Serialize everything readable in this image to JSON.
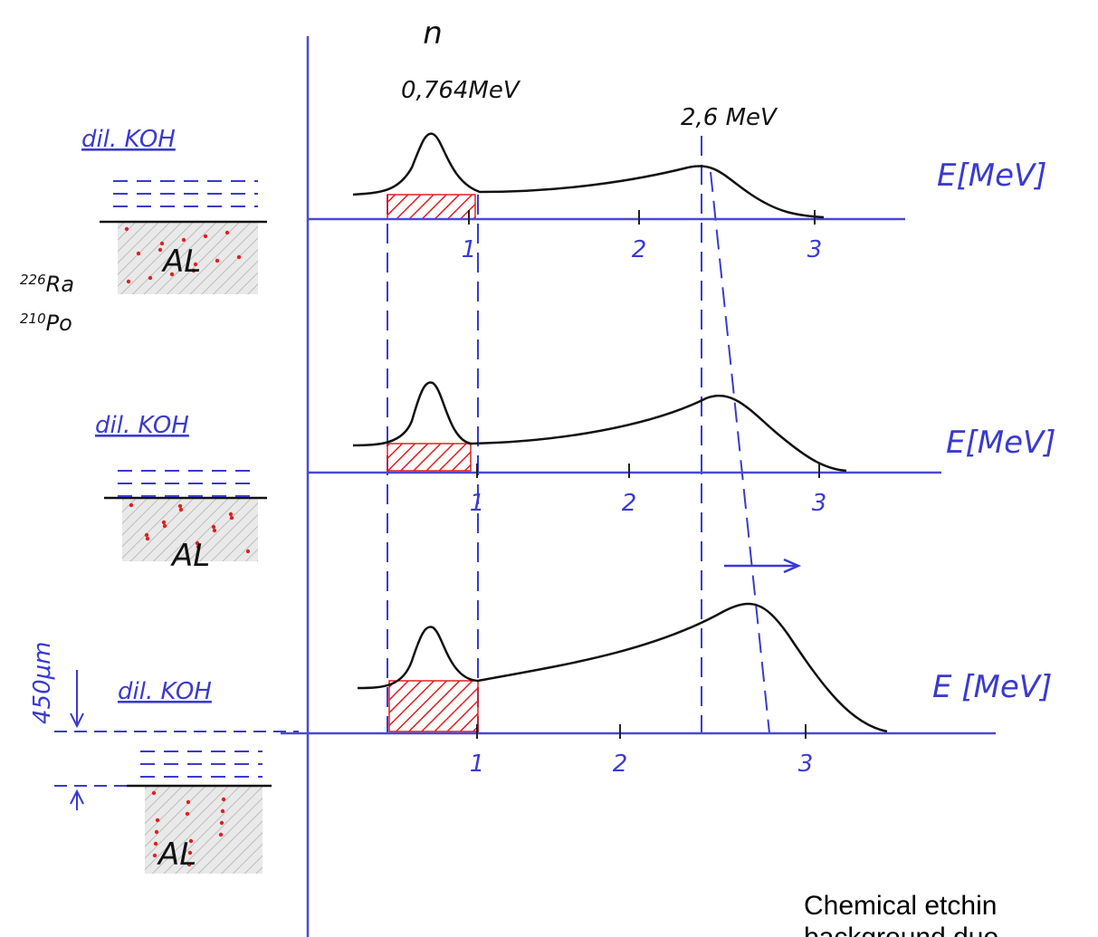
{
  "peak_label": {
    "symbol": "n",
    "energy": "0,764MeV"
  },
  "line_label": "2,6 MeV",
  "isotopes": [
    {
      "mass": "226",
      "element": "Ra"
    },
    {
      "mass": "210",
      "element": "Po"
    }
  ],
  "thickness": "450μm",
  "panels": [
    {
      "solution": "dil. KOH",
      "substrate": "AL",
      "axis_label": "E[MeV]",
      "ticks": [
        "1",
        "2",
        "3"
      ]
    },
    {
      "solution": "dil. KOH",
      "substrate": "AL",
      "axis_label": "E[MeV]",
      "ticks": [
        "1",
        "2",
        "3"
      ]
    },
    {
      "solution": "dil. KOH",
      "substrate": "AL",
      "axis_label": "E [MeV]",
      "ticks": [
        "1",
        "2",
        "3"
      ]
    }
  ],
  "caption": [
    "Chemical etchin",
    "background due"
  ]
}
